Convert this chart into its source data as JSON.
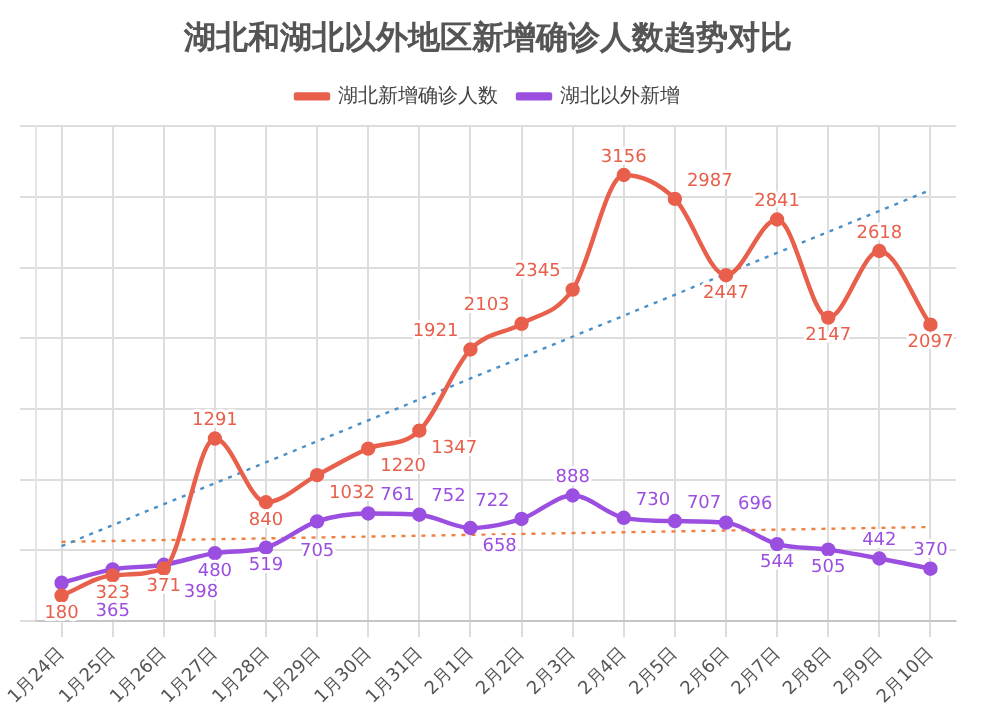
{
  "chart_data": {
    "type": "line",
    "title": "湖北和湖北以外地区新增确诊人数趋势对比",
    "categories": [
      "1月24日",
      "1月25日",
      "1月26日",
      "1月27日",
      "1月28日",
      "1月29日",
      "1月30日",
      "1月31日",
      "2月1日",
      "2月2日",
      "2月3日",
      "2月4日",
      "2月5日",
      "2月6日",
      "2月7日",
      "2月8日",
      "2月9日",
      "2月10日"
    ],
    "series": [
      {
        "name": "湖北新增确诊人数",
        "color": "#e8604c",
        "values": [
          180,
          323,
          371,
          1291,
          840,
          1032,
          1220,
          1347,
          1921,
          2103,
          2345,
          3156,
          2987,
          2447,
          2841,
          2147,
          2618,
          2097
        ],
        "value_labels": [
          "180",
          "323",
          "371",
          "1291",
          "840",
          "1032",
          "1220",
          "1347",
          "1921",
          "2103",
          "2345",
          "3156",
          "2987",
          "2447",
          "2841",
          "2147",
          "2618",
          "2097"
        ]
      },
      {
        "name": "湖北以外新增",
        "color": "#9b4fe0",
        "values": [
          270,
          365,
          398,
          480,
          519,
          705,
          761,
          752,
          658,
          722,
          888,
          730,
          707,
          696,
          544,
          505,
          442,
          370
        ],
        "value_labels": [
          null,
          "365",
          "398",
          "480",
          "519",
          "705",
          "761",
          "752",
          "658",
          "722",
          "888",
          "730",
          "707",
          "696",
          "544",
          "505",
          "442",
          "370"
        ]
      },
      {
        "type": "line",
        "color": "#4a90c8",
        "line_style": "dotted",
        "marker": "none",
        "x": [
          "1月24日",
          "2月10日"
        ],
        "values": [
          530,
          3050
        ]
      },
      {
        "type": "line",
        "color": "#f08040",
        "line_style": "dotted",
        "marker": "none",
        "x": [
          "1月24日",
          "2月10日"
        ],
        "values": [
          560,
          665
        ]
      }
    ],
    "ylim": [
      0,
      3500
    ],
    "yticks": [
      0,
      500,
      1000,
      1500,
      2000,
      2500,
      3000,
      3500
    ],
    "tick_labels": "x",
    "grid": true,
    "legend": "top",
    "marker": "circle",
    "line_style": "solid"
  }
}
